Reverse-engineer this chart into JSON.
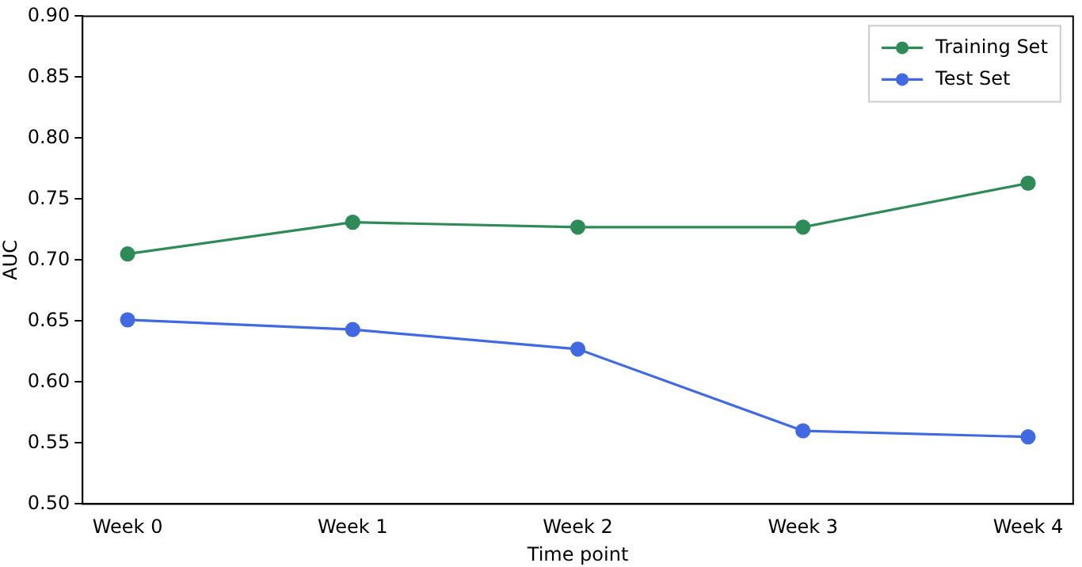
{
  "chart_data": {
    "type": "line",
    "xlabel": "Time point",
    "ylabel": "AUC",
    "categories": [
      "Week 0",
      "Week 1",
      "Week 2",
      "Week 3",
      "Week 4"
    ],
    "series": [
      {
        "name": "Training Set",
        "color": "#2e8b57",
        "values": [
          0.705,
          0.731,
          0.727,
          0.727,
          0.763
        ]
      },
      {
        "name": "Test Set",
        "color": "#4169e1",
        "values": [
          0.651,
          0.643,
          0.627,
          0.56,
          0.555
        ]
      }
    ],
    "ylim": [
      0.5,
      0.9
    ],
    "yticks": [
      {
        "value": 0.5,
        "label": "0.50"
      },
      {
        "value": 0.55,
        "label": "0.55"
      },
      {
        "value": 0.6,
        "label": "0.60"
      },
      {
        "value": 0.65,
        "label": "0.65"
      },
      {
        "value": 0.7,
        "label": "0.70"
      },
      {
        "value": 0.75,
        "label": "0.75"
      },
      {
        "value": 0.8,
        "label": "0.80"
      },
      {
        "value": 0.85,
        "label": "0.85"
      },
      {
        "value": 0.9,
        "label": "0.90"
      }
    ],
    "grid": false,
    "legend": "top right",
    "marker": "circle",
    "line_style": "solid"
  }
}
